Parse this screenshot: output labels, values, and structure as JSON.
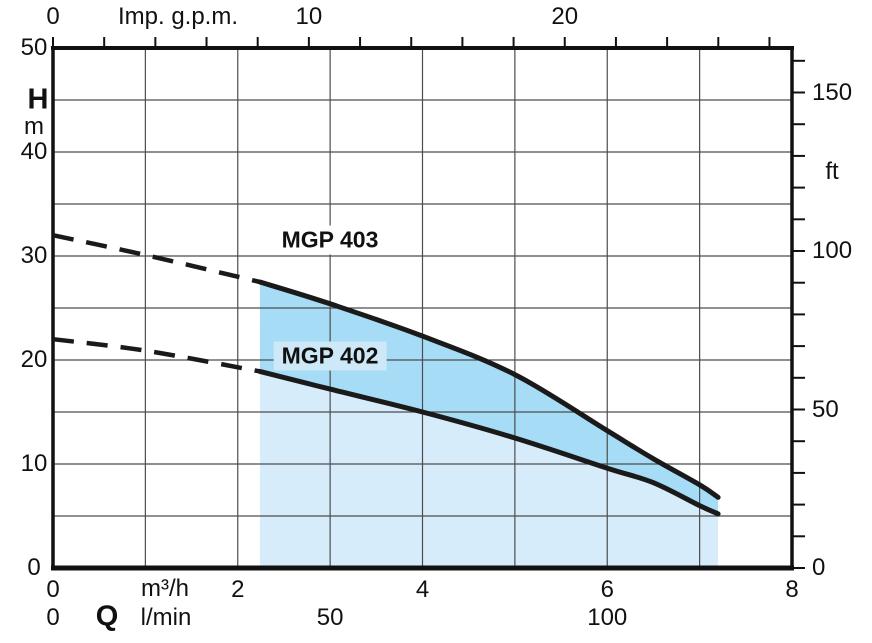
{
  "chart_data": {
    "type": "line",
    "description": "Pump head-flow performance curves",
    "flow_symbol": "Q",
    "x_primary": {
      "unit": "m³/h",
      "range": [
        0,
        8
      ],
      "ticks": [
        0,
        2,
        4,
        6,
        8
      ],
      "grid_step": 1
    },
    "x_secondary": {
      "unit": "l/min",
      "ticks": [
        0,
        50,
        100
      ],
      "m3h_per_lmin": 0.06
    },
    "x_top": {
      "unit": "Imp. g.p.m.",
      "ticks": [
        0,
        10,
        20
      ],
      "minor_tick_step": 2,
      "minor_tick_max": 28,
      "m3h_per_gpm": 0.277
    },
    "y_left": {
      "symbol": "H",
      "unit": "m",
      "range": [
        0,
        50
      ],
      "ticks": [
        50,
        40,
        30,
        20,
        10,
        0
      ],
      "grid_step": 5
    },
    "y_right": {
      "unit": "ft",
      "ticks": [
        150,
        100,
        50,
        0
      ],
      "minor_tick_step": 10,
      "minor_tick_max": 160,
      "m_per_ft": 0.3048
    },
    "series": [
      {
        "name": "MGP 403",
        "dashed_points": [
          [
            0,
            32
          ],
          [
            1,
            30.1
          ],
          [
            2.24,
            27.5
          ]
        ],
        "solid_points": [
          [
            2.24,
            27.5
          ],
          [
            3,
            25.4
          ],
          [
            4,
            22.3
          ],
          [
            5,
            18.6
          ],
          [
            6,
            13.2
          ],
          [
            6.5,
            10.5
          ],
          [
            7,
            8.0
          ],
          [
            7.2,
            6.8
          ]
        ]
      },
      {
        "name": "MGP 402",
        "dashed_points": [
          [
            0,
            22
          ],
          [
            1,
            20.9
          ],
          [
            2.24,
            18.9
          ]
        ],
        "solid_points": [
          [
            2.24,
            18.9
          ],
          [
            3,
            17.2
          ],
          [
            4,
            15.0
          ],
          [
            5,
            12.5
          ],
          [
            6,
            9.6
          ],
          [
            6.5,
            8.2
          ],
          [
            7,
            6.0
          ],
          [
            7.2,
            5.2
          ]
        ]
      }
    ],
    "operating_range": {
      "q_start": 2.24,
      "q_end": 7.2
    },
    "colors": {
      "band_between_curves": "#a6dcf5",
      "band_below_lower": "#d6ecfa",
      "curve": "#1a1a1a",
      "grid": "#4d4d4d",
      "axis": "#111111",
      "background": "#ffffff"
    }
  }
}
